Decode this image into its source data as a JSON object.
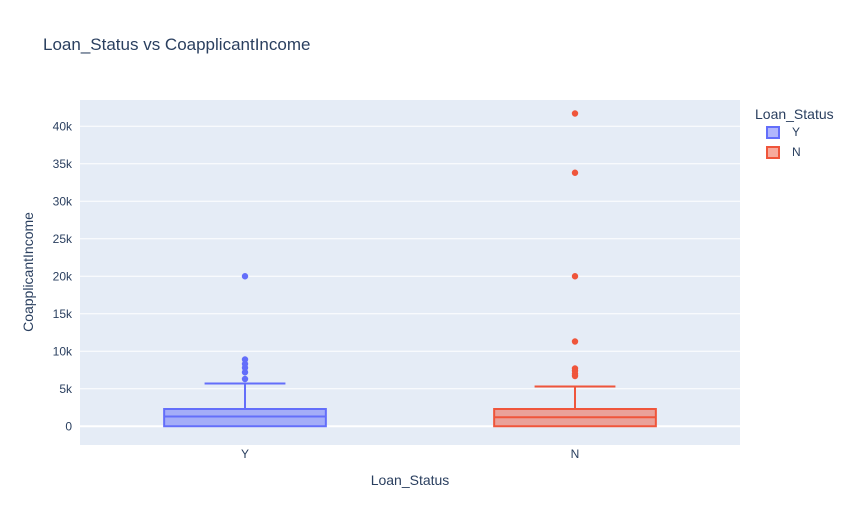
{
  "chart_data": {
    "type": "box",
    "title": "Loan_Status vs CoapplicantIncome",
    "xlabel": "Loan_Status",
    "ylabel": "CoapplicantIncome",
    "ylim": [
      -2500,
      43500
    ],
    "yticks": [
      {
        "value": 0,
        "label": "0"
      },
      {
        "value": 5000,
        "label": "5k"
      },
      {
        "value": 10000,
        "label": "10k"
      },
      {
        "value": 15000,
        "label": "15k"
      },
      {
        "value": 20000,
        "label": "20k"
      },
      {
        "value": 25000,
        "label": "25k"
      },
      {
        "value": 30000,
        "label": "30k"
      },
      {
        "value": 35000,
        "label": "35k"
      },
      {
        "value": 40000,
        "label": "40k"
      }
    ],
    "categories": [
      "Y",
      "N"
    ],
    "legend": {
      "title": "Loan_Status",
      "position": "top-right"
    },
    "grid": true,
    "series": [
      {
        "name": "Y",
        "color": "#636efa",
        "fill": "rgba(99,110,250,0.5)",
        "min": 0,
        "q1": 0,
        "median": 1300,
        "q3": 2300,
        "upper_fence": 5700,
        "outliers": [
          6300,
          7200,
          7800,
          8300,
          8900,
          20000
        ]
      },
      {
        "name": "N",
        "color": "#ef553b",
        "fill": "rgba(239,85,59,0.5)",
        "min": 0,
        "q1": 0,
        "median": 1200,
        "q3": 2300,
        "upper_fence": 5300,
        "outliers": [
          6700,
          7000,
          7400,
          7700,
          11300,
          20000,
          33800,
          41700
        ]
      }
    ]
  }
}
